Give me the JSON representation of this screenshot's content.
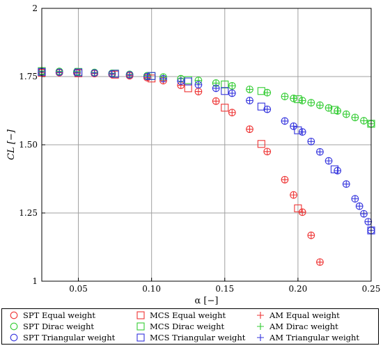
{
  "chart_data": {
    "type": "scatter",
    "title": "",
    "xlabel": "α [−]",
    "ylabel": "CL [−]",
    "xlim": [
      0.025,
      0.25
    ],
    "ylim": [
      1.0,
      2.0
    ],
    "xticks": [
      0.05,
      0.1,
      0.15,
      0.2,
      0.25
    ],
    "xtick_labels": [
      "0.05",
      "0.10",
      "0.15",
      "0.20",
      "0.25"
    ],
    "yticks": [
      1.0,
      1.25,
      1.5,
      1.75,
      2.0
    ],
    "ytick_labels": [
      "1",
      "1.25",
      "1.50",
      "1.75",
      "2"
    ],
    "grid": true,
    "legend_position": "bottom",
    "colors": {
      "equal": "#ee3333",
      "dirac": "#33cc33",
      "triangular": "#3333dd"
    },
    "series": [
      {
        "name": "SPT Equal weight",
        "marker": "circle",
        "color": "#ee3333",
        "x": [
          0.025,
          0.037,
          0.049,
          0.061,
          0.073,
          0.085,
          0.097,
          0.108,
          0.12,
          0.132,
          0.144,
          0.155,
          0.167,
          0.179,
          0.191,
          0.197,
          0.203,
          0.209,
          0.215
        ],
        "y": [
          1.765,
          1.764,
          1.763,
          1.761,
          1.758,
          1.753,
          1.746,
          1.735,
          1.718,
          1.695,
          1.66,
          1.618,
          1.557,
          1.475,
          1.372,
          1.316,
          1.253,
          1.168,
          1.07
        ]
      },
      {
        "name": "SPT Dirac weight",
        "marker": "circle",
        "color": "#33cc33",
        "x": [
          0.025,
          0.037,
          0.049,
          0.061,
          0.073,
          0.085,
          0.097,
          0.108,
          0.12,
          0.132,
          0.144,
          0.155,
          0.167,
          0.179,
          0.191,
          0.197,
          0.203,
          0.209,
          0.215,
          0.221,
          0.227,
          0.233,
          0.239,
          0.245,
          0.25
        ],
        "y": [
          1.77,
          1.769,
          1.768,
          1.765,
          1.762,
          1.758,
          1.753,
          1.748,
          1.742,
          1.736,
          1.726,
          1.716,
          1.703,
          1.691,
          1.677,
          1.67,
          1.662,
          1.654,
          1.645,
          1.635,
          1.624,
          1.612,
          1.6,
          1.588,
          1.577
        ]
      },
      {
        "name": "SPT Triangular weight",
        "marker": "circle",
        "color": "#3333dd",
        "x": [
          0.025,
          0.037,
          0.049,
          0.061,
          0.073,
          0.085,
          0.097,
          0.108,
          0.12,
          0.132,
          0.144,
          0.155,
          0.167,
          0.179,
          0.191,
          0.197,
          0.203,
          0.209,
          0.215,
          0.221,
          0.227,
          0.233,
          0.239,
          0.242,
          0.245,
          0.248,
          0.25
        ],
        "y": [
          1.767,
          1.766,
          1.765,
          1.763,
          1.76,
          1.756,
          1.75,
          1.742,
          1.733,
          1.72,
          1.707,
          1.689,
          1.662,
          1.63,
          1.587,
          1.568,
          1.547,
          1.512,
          1.474,
          1.441,
          1.405,
          1.356,
          1.302,
          1.275,
          1.247,
          1.218,
          1.186
        ]
      },
      {
        "name": "MCS Equal weight",
        "marker": "square",
        "color": "#ee3333",
        "x": [
          0.025,
          0.05,
          0.075,
          0.1,
          0.125,
          0.15,
          0.175,
          0.2
        ],
        "y": [
          1.764,
          1.762,
          1.757,
          1.743,
          1.707,
          1.636,
          1.503,
          1.267
        ]
      },
      {
        "name": "MCS Dirac weight",
        "marker": "square",
        "color": "#33cc33",
        "x": [
          0.025,
          0.05,
          0.075,
          0.1,
          0.125,
          0.15,
          0.175,
          0.2,
          0.225,
          0.25
        ],
        "y": [
          1.77,
          1.767,
          1.761,
          1.752,
          1.737,
          1.721,
          1.697,
          1.667,
          1.628,
          1.577
        ]
      },
      {
        "name": "MCS Triangular weight",
        "marker": "square",
        "color": "#3333dd",
        "x": [
          0.025,
          0.05,
          0.075,
          0.1,
          0.125,
          0.15,
          0.175,
          0.2,
          0.225,
          0.25
        ],
        "y": [
          1.767,
          1.765,
          1.76,
          1.752,
          1.732,
          1.697,
          1.64,
          1.553,
          1.41,
          1.186
        ]
      },
      {
        "name": "AM Equal weight",
        "marker": "plus",
        "color": "#ee3333",
        "x": [
          0.025,
          0.037,
          0.049,
          0.061,
          0.073,
          0.085,
          0.097,
          0.108,
          0.12,
          0.132,
          0.144,
          0.155,
          0.167,
          0.179,
          0.191,
          0.197,
          0.203,
          0.209,
          0.215
        ],
        "y": [
          1.765,
          1.764,
          1.763,
          1.761,
          1.758,
          1.753,
          1.746,
          1.735,
          1.718,
          1.695,
          1.66,
          1.618,
          1.557,
          1.475,
          1.372,
          1.316,
          1.253,
          1.168,
          1.07
        ]
      },
      {
        "name": "AM Dirac weight",
        "marker": "plus",
        "color": "#33cc33",
        "x": [
          0.025,
          0.037,
          0.049,
          0.061,
          0.073,
          0.085,
          0.097,
          0.108,
          0.12,
          0.132,
          0.144,
          0.155,
          0.167,
          0.179,
          0.191,
          0.197,
          0.203,
          0.209,
          0.215,
          0.221,
          0.227,
          0.233,
          0.239,
          0.245,
          0.25
        ],
        "y": [
          1.77,
          1.769,
          1.768,
          1.765,
          1.762,
          1.758,
          1.753,
          1.748,
          1.742,
          1.736,
          1.726,
          1.716,
          1.703,
          1.691,
          1.677,
          1.67,
          1.662,
          1.654,
          1.645,
          1.635,
          1.624,
          1.612,
          1.6,
          1.588,
          1.577
        ]
      },
      {
        "name": "AM Triangular weight",
        "marker": "plus",
        "color": "#3333dd",
        "x": [
          0.025,
          0.037,
          0.049,
          0.061,
          0.073,
          0.085,
          0.097,
          0.108,
          0.12,
          0.132,
          0.144,
          0.155,
          0.167,
          0.179,
          0.191,
          0.197,
          0.203,
          0.209,
          0.215,
          0.221,
          0.227,
          0.233,
          0.239,
          0.242,
          0.245,
          0.248,
          0.25
        ],
        "y": [
          1.767,
          1.766,
          1.765,
          1.763,
          1.76,
          1.756,
          1.75,
          1.742,
          1.733,
          1.72,
          1.707,
          1.689,
          1.662,
          1.63,
          1.587,
          1.568,
          1.547,
          1.512,
          1.474,
          1.441,
          1.405,
          1.356,
          1.302,
          1.275,
          1.247,
          1.218,
          1.186
        ]
      }
    ]
  }
}
